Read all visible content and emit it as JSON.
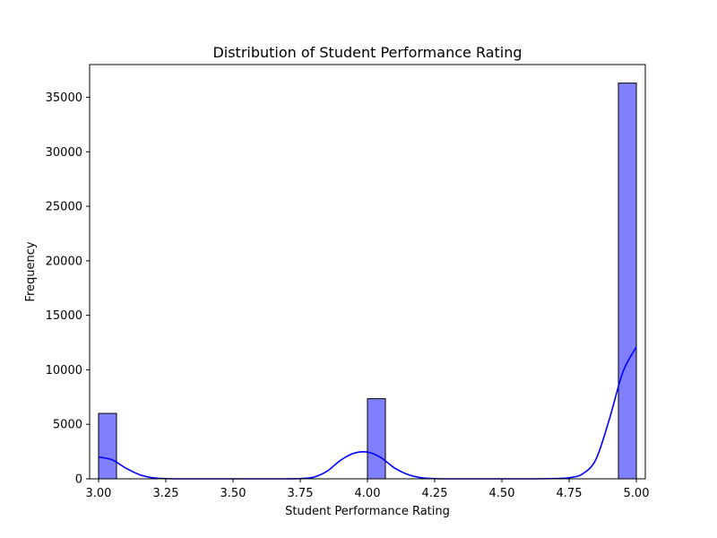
{
  "chart_data": {
    "type": "bar",
    "title": "Distribution of Student Performance Rating",
    "xlabel": "Student Performance Rating",
    "ylabel": "Frequency",
    "xlim": [
      2.9667,
      5.0333
    ],
    "ylim": [
      0,
      38000
    ],
    "x_ticks": [
      3.0,
      3.25,
      3.5,
      3.75,
      4.0,
      4.25,
      4.5,
      4.75,
      5.0
    ],
    "x_tick_labels": [
      "3.00",
      "3.25",
      "3.50",
      "3.75",
      "4.00",
      "4.25",
      "4.50",
      "4.75",
      "5.00"
    ],
    "y_ticks": [
      0,
      5000,
      10000,
      15000,
      20000,
      25000,
      30000,
      35000
    ],
    "y_tick_labels": [
      "0",
      "5000",
      "10000",
      "15000",
      "20000",
      "25000",
      "30000",
      "35000"
    ],
    "bars": [
      {
        "x0": 3.0,
        "x1": 3.0667,
        "value": 6000
      },
      {
        "x0": 4.0,
        "x1": 4.0667,
        "value": 7350
      },
      {
        "x0": 4.9333,
        "x1": 5.0,
        "value": 36300
      }
    ],
    "kde": {
      "x": [
        3.0,
        3.05,
        3.1,
        3.15,
        3.2,
        3.25,
        3.3,
        3.4,
        3.5,
        3.6,
        3.7,
        3.75,
        3.8,
        3.85,
        3.9,
        3.95,
        4.0,
        4.05,
        4.1,
        4.15,
        4.2,
        4.25,
        4.3,
        4.4,
        4.5,
        4.6,
        4.7,
        4.75,
        4.8,
        4.85,
        4.9,
        4.95,
        5.0
      ],
      "y": [
        2000,
        1750,
        1000,
        400,
        100,
        20,
        0,
        0,
        0,
        0,
        0,
        20,
        150,
        700,
        1700,
        2350,
        2450,
        1950,
        1000,
        400,
        100,
        20,
        0,
        0,
        0,
        0,
        30,
        100,
        450,
        1800,
        5500,
        9800,
        12100
      ]
    },
    "grid": false,
    "bar_color": "#8080ff",
    "bar_edge_color": "#000000",
    "kde_color": "#0000ff"
  }
}
